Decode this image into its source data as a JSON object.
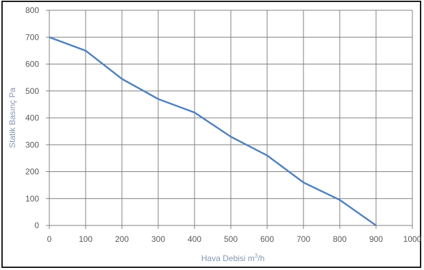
{
  "chart_data": {
    "type": "line",
    "xlabel_text": "Hava Debisi m",
    "xlabel_sup": "3",
    "xlabel_tail": "/h",
    "ylabel": "Statik Basınç Pa",
    "xlim": [
      0,
      1000
    ],
    "ylim": [
      0,
      800
    ],
    "x_ticks": [
      "0",
      "100",
      "200",
      "300",
      "400",
      "500",
      "600",
      "700",
      "800",
      "900",
      "1000"
    ],
    "y_ticks": [
      "0",
      "100",
      "200",
      "300",
      "400",
      "500",
      "600",
      "700",
      "800"
    ],
    "grid": true,
    "series": [
      {
        "x": [
          0,
          100,
          200,
          300,
          400,
          500,
          600,
          700,
          800,
          900
        ],
        "y": [
          700,
          650,
          545,
          470,
          420,
          330,
          260,
          160,
          95,
          0
        ]
      }
    ],
    "colors": {
      "line": "#4f81bd",
      "grid": "#7f7f7f",
      "tick_text": "#595959",
      "axis_title": "#8497b0"
    }
  }
}
